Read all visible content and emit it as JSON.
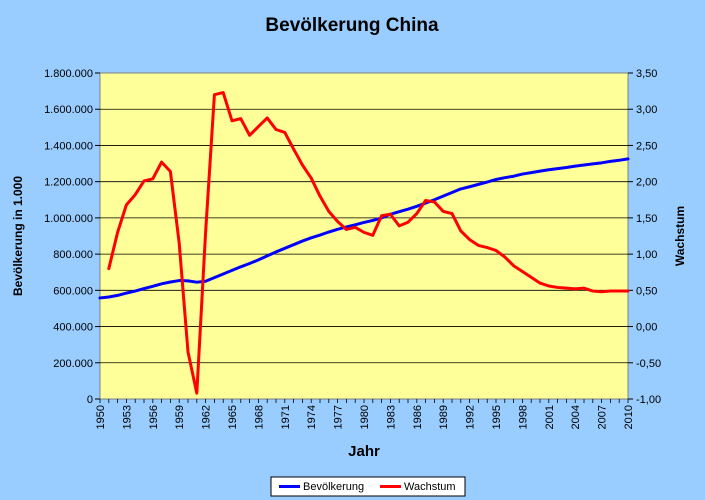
{
  "chart_data": {
    "type": "line",
    "title": "Bevölkerung China",
    "xlabel": "Jahr",
    "ylabel": "Bevölkerung in 1.000",
    "y2label": "Wachstum",
    "xlim": [
      1950,
      2010
    ],
    "ylim": [
      0,
      1800000
    ],
    "y2lim": [
      -1.0,
      3.5
    ],
    "grid": true,
    "legend_position": "bottom",
    "x_tick_labels": [
      "1950",
      "1953",
      "1956",
      "1959",
      "1962",
      "1965",
      "1968",
      "1971",
      "1974",
      "1977",
      "1980",
      "1983",
      "1986",
      "1989",
      "1992",
      "1995",
      "1998",
      "2001",
      "2004",
      "2007",
      "2010"
    ],
    "y_tick_labels": [
      "0",
      "200.000",
      "400.000",
      "600.000",
      "800.000",
      "1.000.000",
      "1.200.000",
      "1.400.000",
      "1.600.000",
      "1.800.000"
    ],
    "y2_tick_labels": [
      "-1,00",
      "-0,50",
      "0,00",
      "0,50",
      "1,00",
      "1,50",
      "2,00",
      "2,50",
      "3,00",
      "3,50"
    ],
    "colors": {
      "population": "#0000FF",
      "growth": "#FF0000",
      "plot_bg": "#FFFF99",
      "page_bg": "#99CCFF"
    },
    "series": [
      {
        "name": "Bevölkerung",
        "axis": "left",
        "x": [
          1950,
          1951,
          1952,
          1953,
          1954,
          1955,
          1956,
          1957,
          1958,
          1959,
          1960,
          1961,
          1962,
          1963,
          1964,
          1965,
          1966,
          1967,
          1968,
          1969,
          1970,
          1971,
          1972,
          1973,
          1974,
          1975,
          1976,
          1977,
          1978,
          1979,
          1980,
          1981,
          1982,
          1983,
          1984,
          1985,
          1986,
          1987,
          1988,
          1989,
          1990,
          1991,
          1992,
          1993,
          1994,
          1995,
          1996,
          1997,
          1998,
          1999,
          2000,
          2001,
          2002,
          2003,
          2004,
          2005,
          2006,
          2007,
          2008,
          2009,
          2010
        ],
        "values": [
          558000,
          563000,
          572000,
          585000,
          596000,
          610000,
          622000,
          636000,
          646000,
          654000,
          652000,
          645000,
          650000,
          670000,
          690000,
          710000,
          730000,
          748000,
          768000,
          790000,
          812000,
          832000,
          852000,
          872000,
          890000,
          905000,
          922000,
          937000,
          950000,
          962000,
          975000,
          986000,
          1000000,
          1020000,
          1034000,
          1048000,
          1064000,
          1082000,
          1100000,
          1120000,
          1140000,
          1160000,
          1172000,
          1185000,
          1198000,
          1212000,
          1222000,
          1230000,
          1242000,
          1250000,
          1258000,
          1266000,
          1272000,
          1278000,
          1286000,
          1292000,
          1298000,
          1304000,
          1312000,
          1318000,
          1326000
        ]
      },
      {
        "name": "Wachstum",
        "axis": "right",
        "x": [
          1951,
          1952,
          1953,
          1954,
          1955,
          1956,
          1957,
          1958,
          1959,
          1960,
          1961,
          1962,
          1963,
          1964,
          1965,
          1966,
          1967,
          1968,
          1969,
          1970,
          1971,
          1972,
          1973,
          1974,
          1975,
          1976,
          1977,
          1978,
          1979,
          1980,
          1981,
          1982,
          1983,
          1984,
          1985,
          1986,
          1987,
          1988,
          1989,
          1990,
          1991,
          1992,
          1993,
          1994,
          1995,
          1996,
          1997,
          1998,
          1999,
          2000,
          2001,
          2002,
          2003,
          2004,
          2005,
          2006,
          2007,
          2008,
          2009,
          2010
        ],
        "values": [
          0.8,
          1.3,
          1.68,
          1.82,
          2.01,
          2.04,
          2.27,
          2.14,
          1.15,
          -0.35,
          -0.92,
          1.3,
          3.2,
          3.23,
          2.84,
          2.87,
          2.64,
          2.76,
          2.88,
          2.72,
          2.68,
          2.45,
          2.23,
          2.05,
          1.8,
          1.59,
          1.45,
          1.34,
          1.37,
          1.3,
          1.26,
          1.53,
          1.55,
          1.39,
          1.44,
          1.56,
          1.74,
          1.72,
          1.59,
          1.56,
          1.32,
          1.2,
          1.12,
          1.09,
          1.05,
          0.96,
          0.84,
          0.76,
          0.68,
          0.6,
          0.56,
          0.54,
          0.53,
          0.52,
          0.53,
          0.49,
          0.48,
          0.49,
          0.49,
          0.49
        ]
      }
    ]
  }
}
